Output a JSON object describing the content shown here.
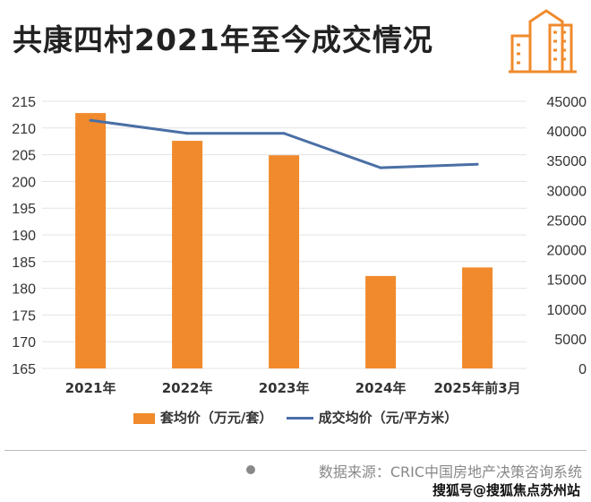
{
  "title": "共康四村2021年至今成交情况",
  "icon": "building-icon",
  "colors": {
    "bar": "#f08a2c",
    "line": "#4a6fa5",
    "grid": "#e3e3e3"
  },
  "chart_data": {
    "type": "bar+line",
    "title": "共康四村2021年至今成交情况",
    "categories": [
      "2021年",
      "2022年",
      "2023年",
      "2024年",
      "2025年前3月"
    ],
    "series": [
      {
        "name": "套均价（万元/套）",
        "type": "bar",
        "axis": "left",
        "values": [
          212.8,
          207.6,
          204.9,
          182.3,
          183.9
        ]
      },
      {
        "name": "成交均价（元/平方米）",
        "type": "line",
        "axis": "right",
        "values": [
          41800,
          39600,
          39600,
          33800,
          34400
        ]
      }
    ],
    "ylim_left": [
      165,
      215
    ],
    "yticks_left": [
      "215",
      "210",
      "205",
      "200",
      "195",
      "190",
      "185",
      "180",
      "175",
      "170",
      "165"
    ],
    "ylim_right": [
      0,
      45000
    ],
    "yticks_right": [
      "45000",
      "40000",
      "35000",
      "30000",
      "25000",
      "20000",
      "15000",
      "10000",
      "5000",
      "0"
    ],
    "grid": true,
    "legend": "bottom"
  },
  "legend": {
    "bar": "套均价（万元/套）",
    "line": "成交均价（元/平方米）"
  },
  "source": "数据来源：CRIC中国房地产决策咨询系统",
  "watermark": "搜狐号@搜狐焦点苏州站"
}
